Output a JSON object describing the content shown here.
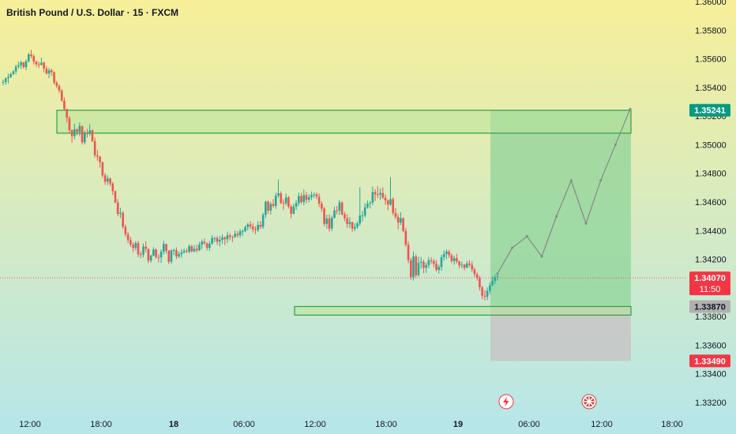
{
  "title": "British Pound / U.S. Dollar · 15 · FXCM",
  "colors": {
    "up": "#26a69a",
    "down": "#ef5350",
    "bg_top": "#f7ef99",
    "bg_bottom": "#b6e6ea",
    "zone_fill": "#b9e39a",
    "zone_stroke": "#2ea043",
    "profit_fill": "#8fd49a",
    "loss_fill": "#c7c7c7",
    "projection": "#888888"
  },
  "price_badges": [
    {
      "label": "1.35241",
      "value": 1.35241,
      "color": "#089981"
    },
    {
      "label": "1.34070",
      "value": 1.3407,
      "color": "#f23645",
      "sub": "11:50"
    },
    {
      "label": "1.33870",
      "value": 1.3387,
      "color": "#b0b0b0"
    },
    {
      "label": "1.33490",
      "value": 1.3349,
      "color": "#f23645"
    }
  ],
  "chart_data": {
    "type": "candlestick",
    "symbol": "GBPUSD",
    "interval": "15",
    "source": "FXCM",
    "y_ticks": [
      "1.36000",
      "1.35800",
      "1.35600",
      "1.35400",
      "1.35200",
      "1.35000",
      "1.34800",
      "1.34600",
      "1.34400",
      "1.34200",
      "1.34000",
      "1.33800",
      "1.33600",
      "1.33400",
      "1.33200"
    ],
    "ylim": [
      1.3315,
      1.36
    ],
    "x_ticks": [
      "12:00",
      "18:00",
      "18",
      "06:00",
      "12:00",
      "18:00",
      "19",
      "06:00",
      "12:00",
      "18:00"
    ],
    "current_price": 1.3407,
    "countdown": "11:50",
    "resistance_zone": [
      1.35081,
      1.35241
    ],
    "support_zone": [
      1.3381,
      1.3387
    ],
    "position": {
      "entry": 1.3387,
      "target": 1.35241,
      "stop": 1.3349
    },
    "close_path": [
      1.3545,
      1.3552,
      1.3566,
      1.3572,
      1.3565,
      1.3552,
      1.354,
      1.3525,
      1.3505,
      1.351,
      1.3495,
      1.348,
      1.346,
      1.344,
      1.343,
      1.3427,
      1.3425,
      1.3422,
      1.3425,
      1.3428,
      1.3426,
      1.3428,
      1.3432,
      1.3435,
      1.3438,
      1.344,
      1.3445,
      1.3452,
      1.3458,
      1.3463,
      1.3465,
      1.3462,
      1.346,
      1.3455,
      1.3448,
      1.3445,
      1.3455,
      1.346,
      1.3445,
      1.344,
      1.3445,
      1.3462,
      1.3465,
      1.346,
      1.3448,
      1.344,
      1.343,
      1.3415,
      1.3408,
      1.3415,
      1.342,
      1.3425,
      1.342,
      1.3415,
      1.341,
      1.3405,
      1.3398,
      1.339,
      1.3395,
      1.341
    ],
    "projection_path": [
      1.341,
      1.3428,
      1.3436,
      1.3422,
      1.345,
      1.3475,
      1.3445,
      1.3475,
      1.35,
      1.3525
    ],
    "candles": [
      [
        1.35435,
        1.35455,
        1.35415,
        1.35438
      ],
      [
        1.35438,
        1.3547,
        1.35418,
        1.35464
      ],
      [
        1.35464,
        1.35497,
        1.35428,
        1.35473
      ],
      [
        1.35473,
        1.35502,
        1.35467,
        1.35494
      ],
      [
        1.35494,
        1.35521,
        1.35486,
        1.35512
      ],
      [
        1.35512,
        1.35559,
        1.35492,
        1.35545
      ],
      [
        1.35545,
        1.35581,
        1.35532,
        1.35555
      ],
      [
        1.35555,
        1.35588,
        1.35528,
        1.35575
      ],
      [
        1.35575,
        1.35578,
        1.3553,
        1.35542
      ],
      [
        1.35542,
        1.35597,
        1.35522,
        1.35584
      ],
      [
        1.35584,
        1.35643,
        1.35574,
        1.35631
      ],
      [
        1.35631,
        1.35662,
        1.35604,
        1.35619
      ],
      [
        1.35619,
        1.35632,
        1.3556,
        1.35582
      ],
      [
        1.35582,
        1.35585,
        1.35545,
        1.35562
      ],
      [
        1.35562,
        1.35579,
        1.35535,
        1.35558
      ],
      [
        1.35558,
        1.35609,
        1.35554,
        1.35573
      ],
      [
        1.35573,
        1.35581,
        1.35506,
        1.35532
      ],
      [
        1.35532,
        1.35549,
        1.35489,
        1.35498
      ],
      [
        1.35498,
        1.35538,
        1.35466,
        1.3552
      ],
      [
        1.3552,
        1.35532,
        1.35482,
        1.35507
      ],
      [
        1.35507,
        1.35512,
        1.35421,
        1.35434
      ],
      [
        1.35434,
        1.35444,
        1.35396,
        1.35411
      ],
      [
        1.35411,
        1.35422,
        1.35362,
        1.35379
      ],
      [
        1.35379,
        1.35389,
        1.353,
        1.35308
      ],
      [
        1.35308,
        1.35331,
        1.35241,
        1.3525
      ],
      [
        1.3525,
        1.3525,
        1.35156,
        1.35188
      ],
      [
        1.35188,
        1.352,
        1.35083,
        1.35101
      ],
      [
        1.35101,
        1.35107,
        1.35015,
        1.3506
      ],
      [
        1.3506,
        1.35146,
        1.35038,
        1.35108
      ],
      [
        1.35108,
        1.35112,
        1.35065,
        1.35089
      ],
      [
        1.35089,
        1.35155,
        1.3506,
        1.35131
      ],
      [
        1.35131,
        1.35133,
        1.35001,
        1.35017
      ],
      [
        1.35017,
        1.35098,
        1.35003,
        1.35081
      ],
      [
        1.35081,
        1.35109,
        1.35049,
        1.35076
      ],
      [
        1.35076,
        1.35143,
        1.35062,
        1.351
      ],
      [
        1.351,
        1.35108,
        1.35018,
        1.35025
      ],
      [
        1.35025,
        1.3505,
        1.34911,
        1.34926
      ],
      [
        1.34926,
        1.34965,
        1.34889,
        1.34917
      ],
      [
        1.34917,
        1.34923,
        1.34841,
        1.34878
      ],
      [
        1.34878,
        1.34881,
        1.3477,
        1.34786
      ],
      [
        1.34786,
        1.34802,
        1.3472,
        1.34742
      ],
      [
        1.34742,
        1.34786,
        1.34719,
        1.34764
      ],
      [
        1.34764,
        1.34771,
        1.34711,
        1.34729
      ],
      [
        1.34729,
        1.3474,
        1.34649,
        1.34676
      ],
      [
        1.34676,
        1.34679,
        1.3459,
        1.34597
      ],
      [
        1.34597,
        1.34621,
        1.345,
        1.34517
      ],
      [
        1.34517,
        1.3456,
        1.34489,
        1.34524
      ],
      [
        1.34524,
        1.34537,
        1.34414,
        1.34427
      ],
      [
        1.34427,
        1.34442,
        1.34357,
        1.34375
      ],
      [
        1.34375,
        1.34391,
        1.34313,
        1.34334
      ],
      [
        1.34334,
        1.34357,
        1.34288,
        1.34302
      ],
      [
        1.34302,
        1.34318,
        1.34251,
        1.34279
      ],
      [
        1.34279,
        1.34327,
        1.34263,
        1.34313
      ],
      [
        1.34313,
        1.34329,
        1.34215,
        1.34235
      ],
      [
        1.34235,
        1.34254,
        1.34207,
        1.34233
      ],
      [
        1.34233,
        1.3431,
        1.34213,
        1.34288
      ],
      [
        1.34288,
        1.34326,
        1.34249,
        1.34272
      ],
      [
        1.34272,
        1.34277,
        1.34173,
        1.34191
      ],
      [
        1.34191,
        1.34232,
        1.34177,
        1.34226
      ],
      [
        1.34226,
        1.34285,
        1.3422,
        1.34268
      ],
      [
        1.34268,
        1.34276,
        1.34203,
        1.34216
      ],
      [
        1.34216,
        1.34235,
        1.34179,
        1.34213
      ],
      [
        1.34213,
        1.34269,
        1.34175,
        1.34253
      ],
      [
        1.34253,
        1.34329,
        1.34234,
        1.34307
      ],
      [
        1.34307,
        1.34309,
        1.3424,
        1.3426
      ],
      [
        1.3426,
        1.34263,
        1.34166,
        1.34183
      ],
      [
        1.34183,
        1.3427,
        1.34169,
        1.34262
      ],
      [
        1.34262,
        1.34275,
        1.34229,
        1.34264
      ],
      [
        1.34264,
        1.34284,
        1.342,
        1.3422
      ],
      [
        1.3422,
        1.34254,
        1.34208,
        1.34236
      ],
      [
        1.34236,
        1.34271,
        1.34211,
        1.34248
      ],
      [
        1.34248,
        1.34274,
        1.3424,
        1.34259
      ],
      [
        1.34259,
        1.34275,
        1.34244,
        1.34254
      ],
      [
        1.34254,
        1.34305,
        1.34241,
        1.34291
      ],
      [
        1.34291,
        1.343,
        1.34247,
        1.34255
      ],
      [
        1.34255,
        1.34299,
        1.34248,
        1.34273
      ],
      [
        1.34273,
        1.34303,
        1.34247,
        1.34263
      ],
      [
        1.34263,
        1.34321,
        1.34256,
        1.34302
      ],
      [
        1.34302,
        1.34338,
        1.34271,
        1.34323
      ],
      [
        1.34323,
        1.34345,
        1.343,
        1.34312
      ],
      [
        1.34312,
        1.34317,
        1.34262,
        1.3428
      ],
      [
        1.3428,
        1.34328,
        1.3426,
        1.34309
      ],
      [
        1.34309,
        1.34369,
        1.343,
        1.34348
      ],
      [
        1.34348,
        1.34358,
        1.3432,
        1.34348
      ],
      [
        1.34348,
        1.34361,
        1.34301,
        1.34323
      ],
      [
        1.34323,
        1.34363,
        1.3429,
        1.34335
      ],
      [
        1.34335,
        1.34373,
        1.34306,
        1.34353
      ],
      [
        1.34353,
        1.34359,
        1.34299,
        1.3434
      ],
      [
        1.3434,
        1.34393,
        1.34314,
        1.34367
      ],
      [
        1.34367,
        1.34383,
        1.34332,
        1.34356
      ],
      [
        1.34356,
        1.34365,
        1.34321,
        1.34355
      ],
      [
        1.34355,
        1.344,
        1.3435,
        1.34378
      ],
      [
        1.34378,
        1.34397,
        1.34351,
        1.34368
      ],
      [
        1.34368,
        1.34412,
        1.3435,
        1.34395
      ],
      [
        1.34395,
        1.34409,
        1.34364,
        1.34397
      ],
      [
        1.34397,
        1.34435,
        1.34388,
        1.34425
      ],
      [
        1.34425,
        1.34454,
        1.34402,
        1.34443
      ],
      [
        1.34443,
        1.34466,
        1.34412,
        1.34429
      ],
      [
        1.34429,
        1.34453,
        1.34388,
        1.34409
      ],
      [
        1.34409,
        1.34432,
        1.34375,
        1.34404
      ],
      [
        1.34404,
        1.34465,
        1.34389,
        1.3444
      ],
      [
        1.3444,
        1.34467,
        1.3441,
        1.34427
      ],
      [
        1.34427,
        1.34525,
        1.34413,
        1.3451
      ],
      [
        1.3451,
        1.34609,
        1.34489,
        1.34602
      ],
      [
        1.34602,
        1.34612,
        1.34519,
        1.3454
      ],
      [
        1.3454,
        1.34602,
        1.34512,
        1.34586
      ],
      [
        1.34586,
        1.3462,
        1.34561,
        1.34573
      ],
      [
        1.34573,
        1.34665,
        1.34552,
        1.34645
      ],
      [
        1.34645,
        1.34757,
        1.3463,
        1.34661
      ],
      [
        1.34661,
        1.34675,
        1.34584,
        1.34595
      ],
      [
        1.34595,
        1.3462,
        1.34546,
        1.34591
      ],
      [
        1.34591,
        1.34659,
        1.34578,
        1.34632
      ],
      [
        1.34632,
        1.34642,
        1.34555,
        1.34568
      ],
      [
        1.34568,
        1.34581,
        1.34487,
        1.34518
      ],
      [
        1.34518,
        1.34587,
        1.34515,
        1.34568
      ],
      [
        1.34568,
        1.34613,
        1.34545,
        1.34592
      ],
      [
        1.34592,
        1.34666,
        1.34573,
        1.34641
      ],
      [
        1.34641,
        1.34664,
        1.34587,
        1.346
      ],
      [
        1.346,
        1.34687,
        1.34577,
        1.34648
      ],
      [
        1.34648,
        1.3467,
        1.34591,
        1.34616
      ],
      [
        1.34616,
        1.34655,
        1.34598,
        1.34633
      ],
      [
        1.34633,
        1.34673,
        1.34612,
        1.3465
      ],
      [
        1.3465,
        1.34668,
        1.34628,
        1.34653
      ],
      [
        1.34653,
        1.34667,
        1.3462,
        1.34637
      ],
      [
        1.34637,
        1.3466,
        1.34564,
        1.34588
      ],
      [
        1.34588,
        1.34606,
        1.34532,
        1.34554
      ],
      [
        1.34554,
        1.34568,
        1.3443,
        1.34447
      ],
      [
        1.34447,
        1.34511,
        1.34414,
        1.34485
      ],
      [
        1.34485,
        1.34514,
        1.34393,
        1.34415
      ],
      [
        1.34415,
        1.34505,
        1.34398,
        1.3449
      ],
      [
        1.3449,
        1.34567,
        1.34483,
        1.34541
      ],
      [
        1.34541,
        1.34572,
        1.34513,
        1.3454
      ],
      [
        1.3454,
        1.34614,
        1.34511,
        1.34596
      ],
      [
        1.34596,
        1.34606,
        1.34507,
        1.34514
      ],
      [
        1.34514,
        1.34533,
        1.34465,
        1.34487
      ],
      [
        1.34487,
        1.34515,
        1.3442,
        1.34447
      ],
      [
        1.34447,
        1.34495,
        1.34418,
        1.3446
      ],
      [
        1.3446,
        1.34463,
        1.34392,
        1.34414
      ],
      [
        1.34414,
        1.34452,
        1.34397,
        1.34426
      ],
      [
        1.34426,
        1.34463,
        1.34414,
        1.3445
      ],
      [
        1.3445,
        1.34703,
        1.34434,
        1.34505
      ],
      [
        1.34505,
        1.34539,
        1.34465,
        1.34506
      ],
      [
        1.34506,
        1.34592,
        1.34491,
        1.34563
      ],
      [
        1.34563,
        1.34611,
        1.34553,
        1.34589
      ],
      [
        1.34589,
        1.34607,
        1.34555,
        1.34595
      ],
      [
        1.34595,
        1.34708,
        1.34577,
        1.34669
      ],
      [
        1.34669,
        1.34689,
        1.34607,
        1.34653
      ],
      [
        1.34653,
        1.34709,
        1.34628,
        1.34651
      ],
      [
        1.34651,
        1.34694,
        1.34614,
        1.34663
      ],
      [
        1.34663,
        1.34703,
        1.34621,
        1.34631
      ],
      [
        1.34631,
        1.34651,
        1.3458,
        1.34611
      ],
      [
        1.34611,
        1.34617,
        1.34543,
        1.34582
      ],
      [
        1.34582,
        1.34774,
        1.34573,
        1.3462
      ],
      [
        1.3462,
        1.34632,
        1.34508,
        1.34524
      ],
      [
        1.34524,
        1.34556,
        1.3448,
        1.34495
      ],
      [
        1.34495,
        1.34514,
        1.34409,
        1.34456
      ],
      [
        1.34456,
        1.34528,
        1.3444,
        1.34487
      ],
      [
        1.34487,
        1.34493,
        1.34388,
        1.34398
      ],
      [
        1.34398,
        1.34418,
        1.34288,
        1.34301
      ],
      [
        1.34301,
        1.34325,
        1.34173,
        1.34194
      ],
      [
        1.34194,
        1.34209,
        1.34057,
        1.34075
      ],
      [
        1.34075,
        1.34253,
        1.34051,
        1.3422
      ],
      [
        1.3422,
        1.34235,
        1.3407,
        1.34089
      ],
      [
        1.34089,
        1.34218,
        1.34078,
        1.34175
      ],
      [
        1.34175,
        1.34216,
        1.34132,
        1.34183
      ],
      [
        1.34183,
        1.34197,
        1.34102,
        1.3414
      ],
      [
        1.3414,
        1.34177,
        1.34105,
        1.34159
      ],
      [
        1.34159,
        1.34216,
        1.34139,
        1.34193
      ],
      [
        1.34193,
        1.34213,
        1.34168,
        1.34187
      ],
      [
        1.34187,
        1.34203,
        1.34145,
        1.34168
      ],
      [
        1.34168,
        1.34193,
        1.34114,
        1.34126
      ],
      [
        1.34126,
        1.34162,
        1.34101,
        1.34146
      ],
      [
        1.34146,
        1.3423,
        1.34121,
        1.34214
      ],
      [
        1.34214,
        1.34261,
        1.34191,
        1.34238
      ],
      [
        1.34238,
        1.34269,
        1.34201,
        1.34254
      ],
      [
        1.34254,
        1.34266,
        1.3421,
        1.34228
      ],
      [
        1.34228,
        1.34242,
        1.34174,
        1.34188
      ],
      [
        1.34188,
        1.34225,
        1.34162,
        1.34208
      ],
      [
        1.34208,
        1.34238,
        1.34171,
        1.34185
      ],
      [
        1.34185,
        1.34191,
        1.34137,
        1.34158
      ],
      [
        1.34158,
        1.34183,
        1.34138,
        1.34162
      ],
      [
        1.34162,
        1.34168,
        1.34123,
        1.34141
      ],
      [
        1.34141,
        1.34188,
        1.34138,
        1.34171
      ],
      [
        1.34171,
        1.34194,
        1.34147,
        1.34161
      ],
      [
        1.34161,
        1.34185,
        1.34111,
        1.34129
      ],
      [
        1.34129,
        1.34143,
        1.34076,
        1.34096
      ],
      [
        1.34096,
        1.34107,
        1.34051,
        1.34069
      ],
      [
        1.34069,
        1.34084,
        1.33983,
        1.34004
      ],
      [
        1.34004,
        1.34015,
        1.33921,
        1.33946
      ],
      [
        1.33946,
        1.33984,
        1.33913,
        1.33939
      ],
      [
        1.33939,
        1.34003,
        1.33915,
        1.3398
      ],
      [
        1.3398,
        1.34038,
        1.33955,
        1.34018
      ],
      [
        1.34018,
        1.3408,
        1.3401,
        1.34048
      ],
      [
        1.34048,
        1.34095,
        1.34027,
        1.34076
      ],
      [
        1.34076,
        1.34104,
        1.34051,
        1.34082
      ]
    ]
  },
  "icons": [
    "lightning-icon",
    "flag-icon"
  ]
}
